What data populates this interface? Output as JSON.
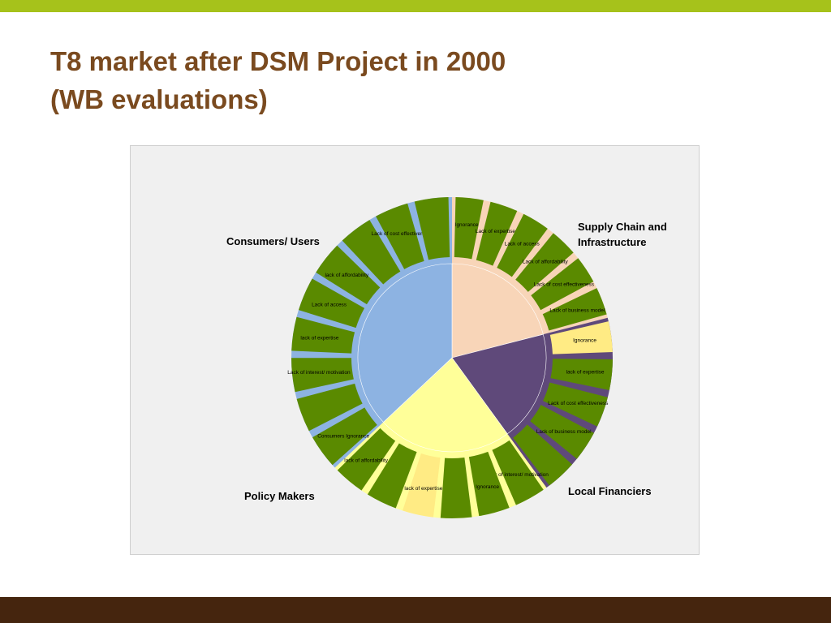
{
  "slide": {
    "title_line1": "T8 market after DSM Project in 2000",
    "title_line2": "(WB evaluations)"
  },
  "colors": {
    "top_bar": "#a6c21b",
    "bottom_bar": "#45250e",
    "title": "#7a4a1f",
    "chart_background": "#f0f0f0",
    "barrier_segment": "#5a8a00",
    "highlight_segment": "#ffeb84"
  },
  "chart_data": {
    "type": "sunburst",
    "title": "",
    "groups": [
      {
        "name": "Supply Chain and Infrastructure",
        "name_lines": [
          "Supply Chain and",
          "Infrastructure"
        ],
        "value": 21,
        "color": "#f8d5b8",
        "children": [
          {
            "label": "Ignorance",
            "value": 3,
            "color": "#5a8a00"
          },
          {
            "label": "Lack of expertise",
            "value": 3,
            "color": "#5a8a00"
          },
          {
            "label": "Lack of access",
            "value": 3,
            "color": "#5a8a00"
          },
          {
            "label": "Lack of affordability",
            "value": 3,
            "color": "#5a8a00"
          },
          {
            "label": "Lack of cost effectiveness",
            "value": 3,
            "color": "#5a8a00"
          },
          {
            "label": "Lack of business model",
            "value": 3,
            "color": "#5a8a00"
          }
        ]
      },
      {
        "name": "Local Financiers",
        "name_lines": [
          "Local Financiers"
        ],
        "value": 19,
        "color": "#5f497a",
        "children": [
          {
            "label": "Ignorance",
            "value": 3,
            "color": "#ffeb84"
          },
          {
            "label": "lack of expertise",
            "value": 3,
            "color": "#5a8a00"
          },
          {
            "label": "Lack of cost effectiveness",
            "value": 3,
            "color": "#5a8a00"
          },
          {
            "label": "Lack of business model",
            "value": 3,
            "color": "#5a8a00"
          },
          {
            "label": "",
            "value": 3,
            "color": "#5a8a00"
          }
        ]
      },
      {
        "name": "Policy Makers",
        "name_lines": [
          "Policy Makers"
        ],
        "value": 23,
        "color": "#ffff99",
        "children": [
          {
            "label": "Lack of interest/ motivation",
            "value": 3,
            "color": "#5a8a00"
          },
          {
            "label": "Ignorance",
            "value": 3,
            "color": "#5a8a00"
          },
          {
            "label": "",
            "value": 3,
            "color": "#5a8a00"
          },
          {
            "label": "lack of expertise",
            "value": 3,
            "color": "#ffeb84"
          },
          {
            "label": "",
            "value": 3,
            "color": "#5a8a00"
          },
          {
            "label": "lack of affordability",
            "value": 3,
            "color": "#5a8a00"
          }
        ]
      },
      {
        "name": "Consumers/ Users",
        "name_lines": [
          "Consumers/ Users"
        ],
        "value": 37,
        "color": "#8db3e2",
        "children": [
          {
            "label": "Consumers Ignorance",
            "value": 3,
            "color": "#5a8a00"
          },
          {
            "label": "",
            "value": 3,
            "color": "#5a8a00"
          },
          {
            "label": "Lack of interest/ motivation",
            "value": 3,
            "color": "#5a8a00"
          },
          {
            "label": "lack of expertise",
            "value": 3,
            "color": "#5a8a00"
          },
          {
            "label": "Lack of access",
            "value": 3,
            "color": "#5a8a00"
          },
          {
            "label": "lack of affordability",
            "value": 3,
            "color": "#5a8a00"
          },
          {
            "label": "",
            "value": 3,
            "color": "#5a8a00"
          },
          {
            "label": "Lack of cost effectiveness",
            "value": 3,
            "color": "#5a8a00"
          },
          {
            "label": "",
            "value": 3,
            "color": "#5a8a00"
          }
        ]
      }
    ]
  }
}
